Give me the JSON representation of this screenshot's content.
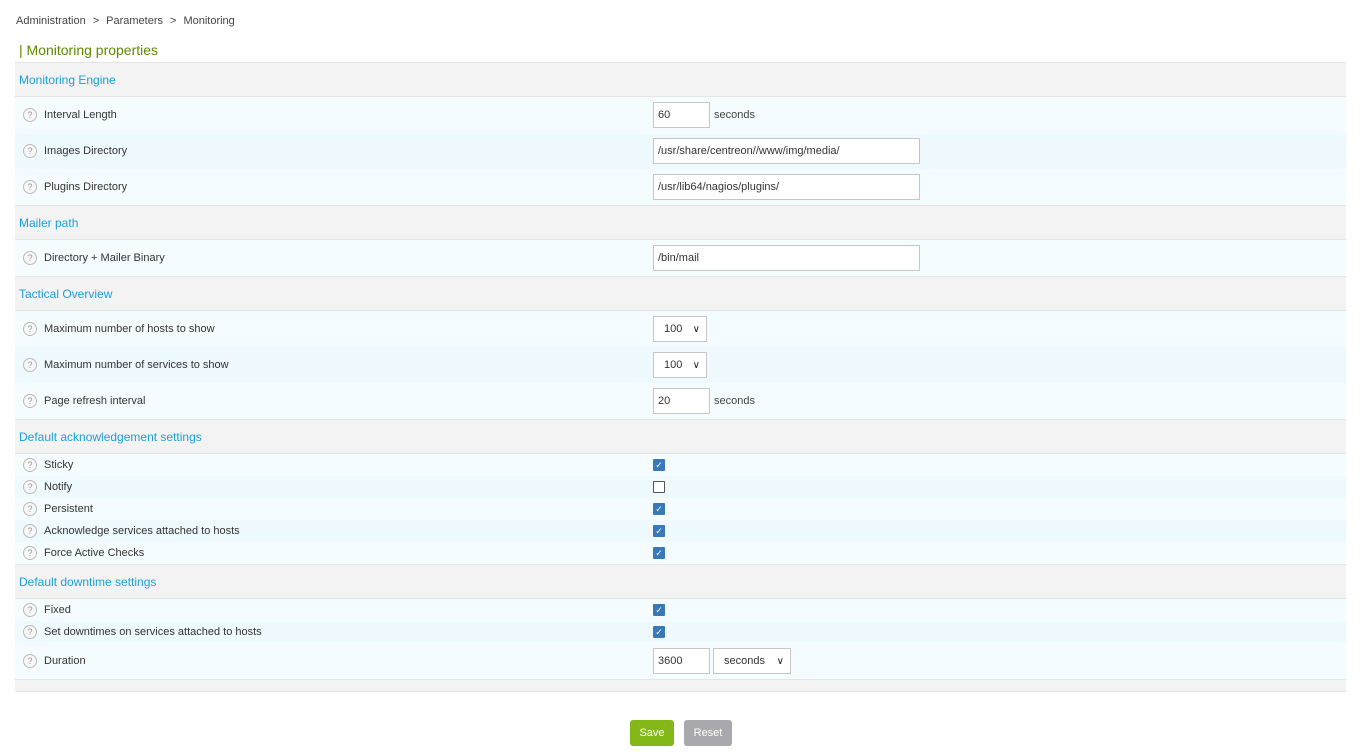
{
  "breadcrumb": [
    "Administration",
    "Parameters",
    "Monitoring"
  ],
  "breadcrumb_sep": ">",
  "title": "| Monitoring properties",
  "sections": [
    {
      "title": "Monitoring Engine",
      "rows": [
        {
          "label": "Interval Length",
          "type": "text",
          "value": "60",
          "width": 57,
          "unit": "seconds"
        },
        {
          "label": "Images Directory",
          "type": "text",
          "value": "/usr/share/centreon//www/img/media/",
          "width": 267
        },
        {
          "label": "Plugins Directory",
          "type": "text",
          "value": "/usr/lib64/nagios/plugins/",
          "width": 267
        }
      ]
    },
    {
      "title": "Mailer path",
      "rows": [
        {
          "label": "Directory + Mailer Binary",
          "type": "text",
          "value": "/bin/mail",
          "width": 267
        }
      ]
    },
    {
      "title": "Tactical Overview",
      "rows": [
        {
          "label": "Maximum number of hosts to show",
          "type": "select",
          "value": "100",
          "width": 54
        },
        {
          "label": "Maximum number of services to show",
          "type": "select",
          "value": "100",
          "width": 54
        },
        {
          "label": "Page refresh interval",
          "type": "text",
          "value": "20",
          "width": 57,
          "unit": "seconds"
        }
      ]
    },
    {
      "title": "Default acknowledgement settings",
      "rows": [
        {
          "label": "Sticky",
          "type": "check",
          "checked": true
        },
        {
          "label": "Notify",
          "type": "check",
          "checked": false
        },
        {
          "label": "Persistent",
          "type": "check",
          "checked": true
        },
        {
          "label": "Acknowledge services attached to hosts",
          "type": "check",
          "checked": true
        },
        {
          "label": "Force Active Checks",
          "type": "check",
          "checked": true
        }
      ]
    },
    {
      "title": "Default downtime settings",
      "rows": [
        {
          "label": "Fixed",
          "type": "check",
          "checked": true
        },
        {
          "label": "Set downtimes on services attached to hosts",
          "type": "check",
          "checked": true
        },
        {
          "label": "Duration",
          "type": "text",
          "value": "3600",
          "width": 57,
          "unitSelect": "seconds"
        }
      ]
    }
  ],
  "buttons": {
    "save": "Save",
    "reset": "Reset"
  },
  "colors": {
    "accent": "#1aa0db",
    "title": "#5d8a00",
    "save": "#84b819",
    "reset": "#a9a9ad",
    "checkbox": "#3a79b8"
  }
}
